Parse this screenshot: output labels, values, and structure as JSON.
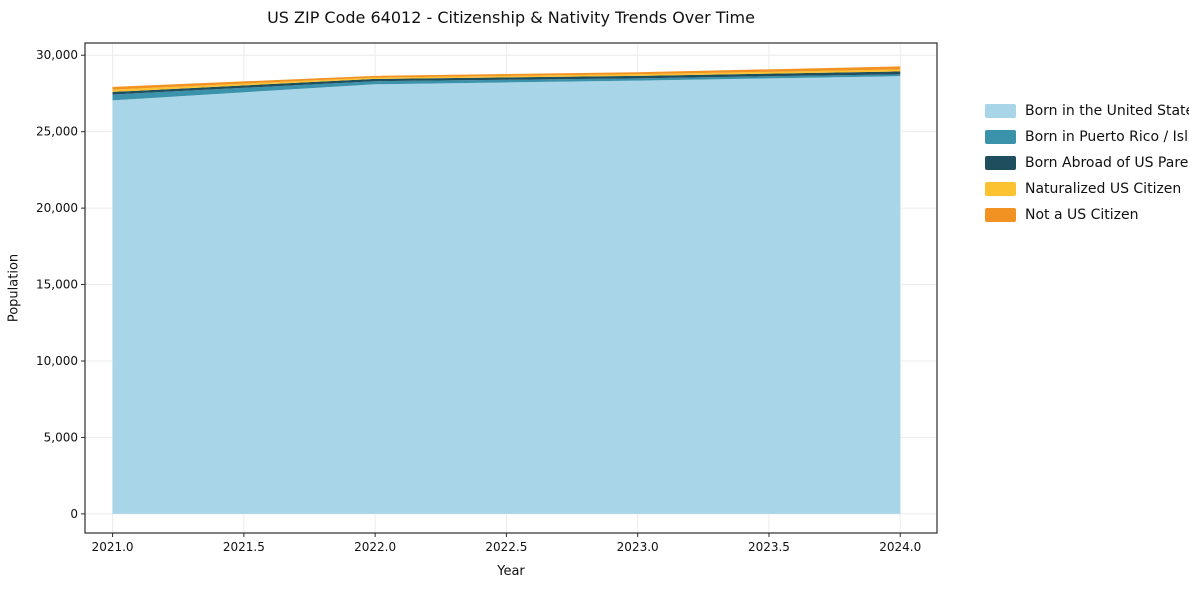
{
  "figure": {
    "background_color": "#ffffff",
    "grid_color": "#ececec",
    "axis_color": "#2b2b2b",
    "text_color": "#111111"
  },
  "chart_data": {
    "type": "area",
    "stacked": true,
    "title": "US ZIP Code 64012 - Citizenship & Nativity Trends Over Time",
    "xlabel": "Year",
    "ylabel": "Population",
    "grid": true,
    "legend_position": "right",
    "x": [
      2021.0,
      2022.0,
      2023.0,
      2024.0
    ],
    "xlim": [
      2020.895,
      2024.14
    ],
    "ylim": [
      -1250,
      30800
    ],
    "x_ticks": [
      {
        "v": 2021.0,
        "label": "2021.0"
      },
      {
        "v": 2021.5,
        "label": "2021.5"
      },
      {
        "v": 2022.0,
        "label": "2022.0"
      },
      {
        "v": 2022.5,
        "label": "2022.5"
      },
      {
        "v": 2023.0,
        "label": "2023.0"
      },
      {
        "v": 2023.5,
        "label": "2023.5"
      },
      {
        "v": 2024.0,
        "label": "2024.0"
      }
    ],
    "y_ticks": [
      {
        "v": 0,
        "label": "0"
      },
      {
        "v": 5000,
        "label": "5,000"
      },
      {
        "v": 10000,
        "label": "10,000"
      },
      {
        "v": 15000,
        "label": "15,000"
      },
      {
        "v": 20000,
        "label": "20,000"
      },
      {
        "v": 25000,
        "label": "25,000"
      },
      {
        "v": 30000,
        "label": "30,000"
      }
    ],
    "series": [
      {
        "name": "Born in the United States",
        "color": "#a8d5e8",
        "values": [
          27050,
          28100,
          28340,
          28630
        ]
      },
      {
        "name": "Born in Puerto Rico / Islands",
        "color": "#3a92ab",
        "values": [
          380,
          200,
          150,
          120
        ]
      },
      {
        "name": "Born Abroad of US Parent(s)",
        "color": "#1f4f5e",
        "values": [
          170,
          150,
          160,
          190
        ]
      },
      {
        "name": "Naturalized US Citizen",
        "color": "#fcc22f",
        "values": [
          150,
          90,
          110,
          130
        ]
      },
      {
        "name": "Not a US Citizen",
        "color": "#f29222",
        "values": [
          180,
          110,
          130,
          200
        ]
      }
    ],
    "totals": [
      27930,
      28650,
      28890,
      29270
    ]
  }
}
